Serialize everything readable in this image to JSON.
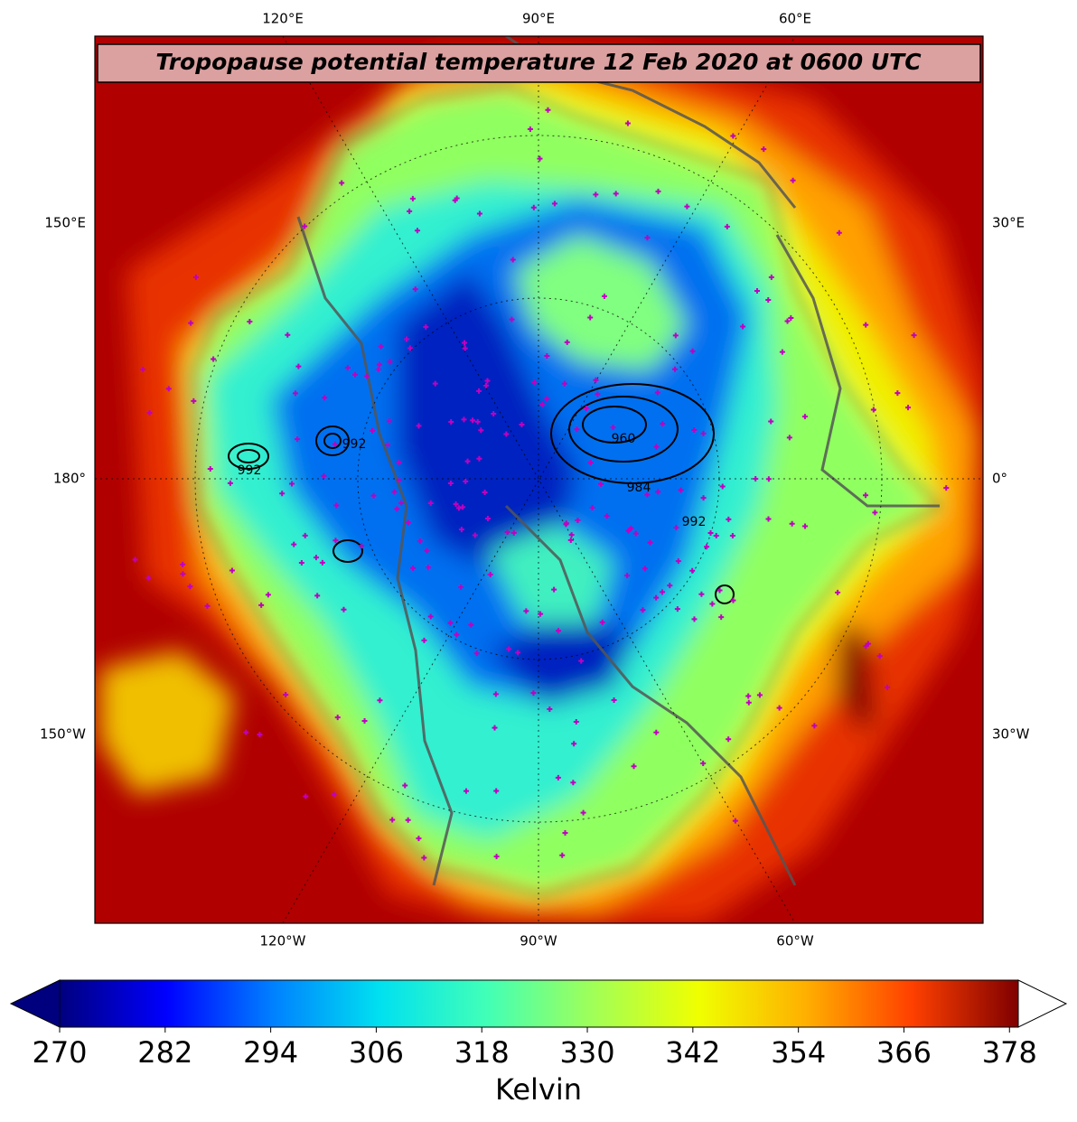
{
  "title": "Tropopause potential temperature 12 Feb 2020 at 0600 UTC",
  "map": {
    "top_labels": [
      "120°E",
      "90°E",
      "60°E"
    ],
    "bottom_labels": [
      "120°W",
      "90°W",
      "60°W"
    ],
    "left_labels": [
      "150°E",
      "180°",
      "150°W"
    ],
    "right_labels": [
      "30°E",
      "0°",
      "30°W"
    ],
    "contour_labels": [
      "992",
      "992",
      "960",
      "984",
      "992"
    ]
  },
  "colorbar": {
    "label": "Kelvin",
    "lim": [
      270,
      379
    ],
    "ticks": [
      270,
      282,
      294,
      306,
      318,
      330,
      342,
      354,
      366,
      378
    ],
    "colors": [
      "#00007f",
      "#0000ff",
      "#0080ff",
      "#00e0f0",
      "#40ffb8",
      "#a0ff58",
      "#f0ff00",
      "#ffb000",
      "#ff4000",
      "#7f0000"
    ],
    "extend_min_color": "#00007f",
    "extend_max_color": "#ffffff"
  }
}
